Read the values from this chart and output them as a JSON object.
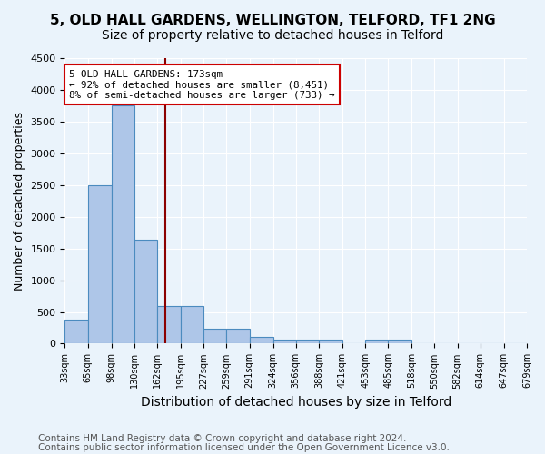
{
  "title1": "5, OLD HALL GARDENS, WELLINGTON, TELFORD, TF1 2NG",
  "title2": "Size of property relative to detached houses in Telford",
  "xlabel": "Distribution of detached houses by size in Telford",
  "ylabel": "Number of detached properties",
  "footnote1": "Contains HM Land Registry data © Crown copyright and database right 2024.",
  "footnote2": "Contains public sector information licensed under the Open Government Licence v3.0.",
  "bin_labels": [
    "33sqm",
    "65sqm",
    "98sqm",
    "130sqm",
    "162sqm",
    "195sqm",
    "227sqm",
    "259sqm",
    "291sqm",
    "324sqm",
    "356sqm",
    "388sqm",
    "421sqm",
    "453sqm",
    "485sqm",
    "518sqm",
    "550sqm",
    "582sqm",
    "614sqm",
    "647sqm",
    "679sqm"
  ],
  "bin_edges": [
    33,
    65,
    98,
    130,
    162,
    195,
    227,
    259,
    291,
    324,
    356,
    388,
    421,
    453,
    485,
    518,
    550,
    582,
    614,
    647,
    679
  ],
  "bar_heights": [
    375,
    2500,
    3750,
    1640,
    600,
    600,
    240,
    240,
    110,
    70,
    60,
    60,
    0,
    60,
    60,
    0,
    0,
    0,
    0,
    0
  ],
  "bar_color": "#aec6e8",
  "bar_edge_color": "#4b8bbf",
  "bg_color": "#eaf3fb",
  "grid_color": "#ffffff",
  "vline_x": 173,
  "vline_color": "#8b0000",
  "annotation_text": "5 OLD HALL GARDENS: 173sqm\n← 92% of detached houses are smaller (8,451)\n8% of semi-detached houses are larger (733) →",
  "annotation_box_color": "#ffffff",
  "annotation_box_edge_color": "#cc0000",
  "ylim": [
    0,
    4500
  ],
  "yticks": [
    0,
    500,
    1000,
    1500,
    2000,
    2500,
    3000,
    3500,
    4000,
    4500
  ],
  "title1_fontsize": 11,
  "title2_fontsize": 10,
  "xlabel_fontsize": 10,
  "ylabel_fontsize": 9,
  "footnote_fontsize": 7.5
}
